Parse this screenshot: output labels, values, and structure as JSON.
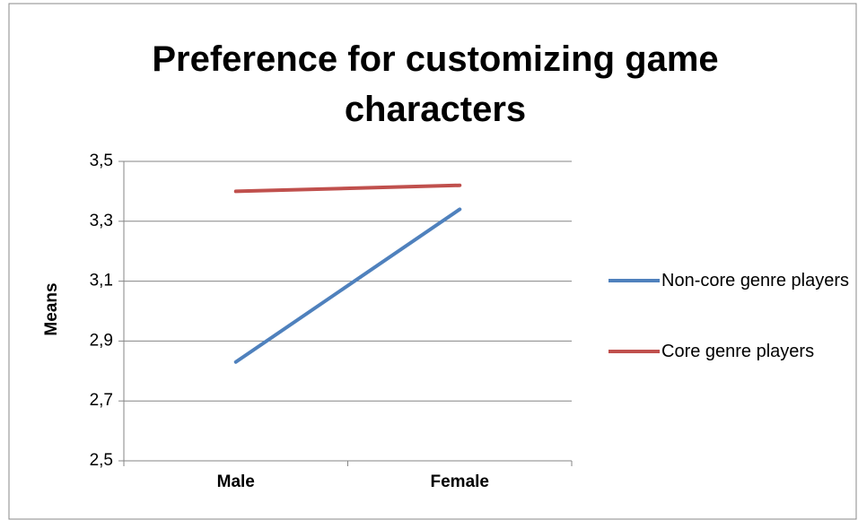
{
  "chart_data": {
    "type": "line",
    "title": "Preference for customizing game characters",
    "ylabel": "Means",
    "categories": [
      "Male",
      "Female"
    ],
    "series": [
      {
        "name": "Non-core genre players",
        "color": "#4f81bd",
        "values": [
          2.83,
          3.34
        ]
      },
      {
        "name": "Core genre players",
        "color": "#c0504d",
        "values": [
          3.4,
          3.42
        ]
      }
    ],
    "ylim": [
      2.5,
      3.5
    ],
    "yticks": [
      {
        "value": 2.5,
        "label": "2,5"
      },
      {
        "value": 2.7,
        "label": "2,7"
      },
      {
        "value": 2.9,
        "label": "2,9"
      },
      {
        "value": 3.1,
        "label": "3,1"
      },
      {
        "value": 3.3,
        "label": "3,3"
      },
      {
        "value": 3.5,
        "label": "3,5"
      }
    ],
    "grid": true,
    "legend": "right"
  }
}
